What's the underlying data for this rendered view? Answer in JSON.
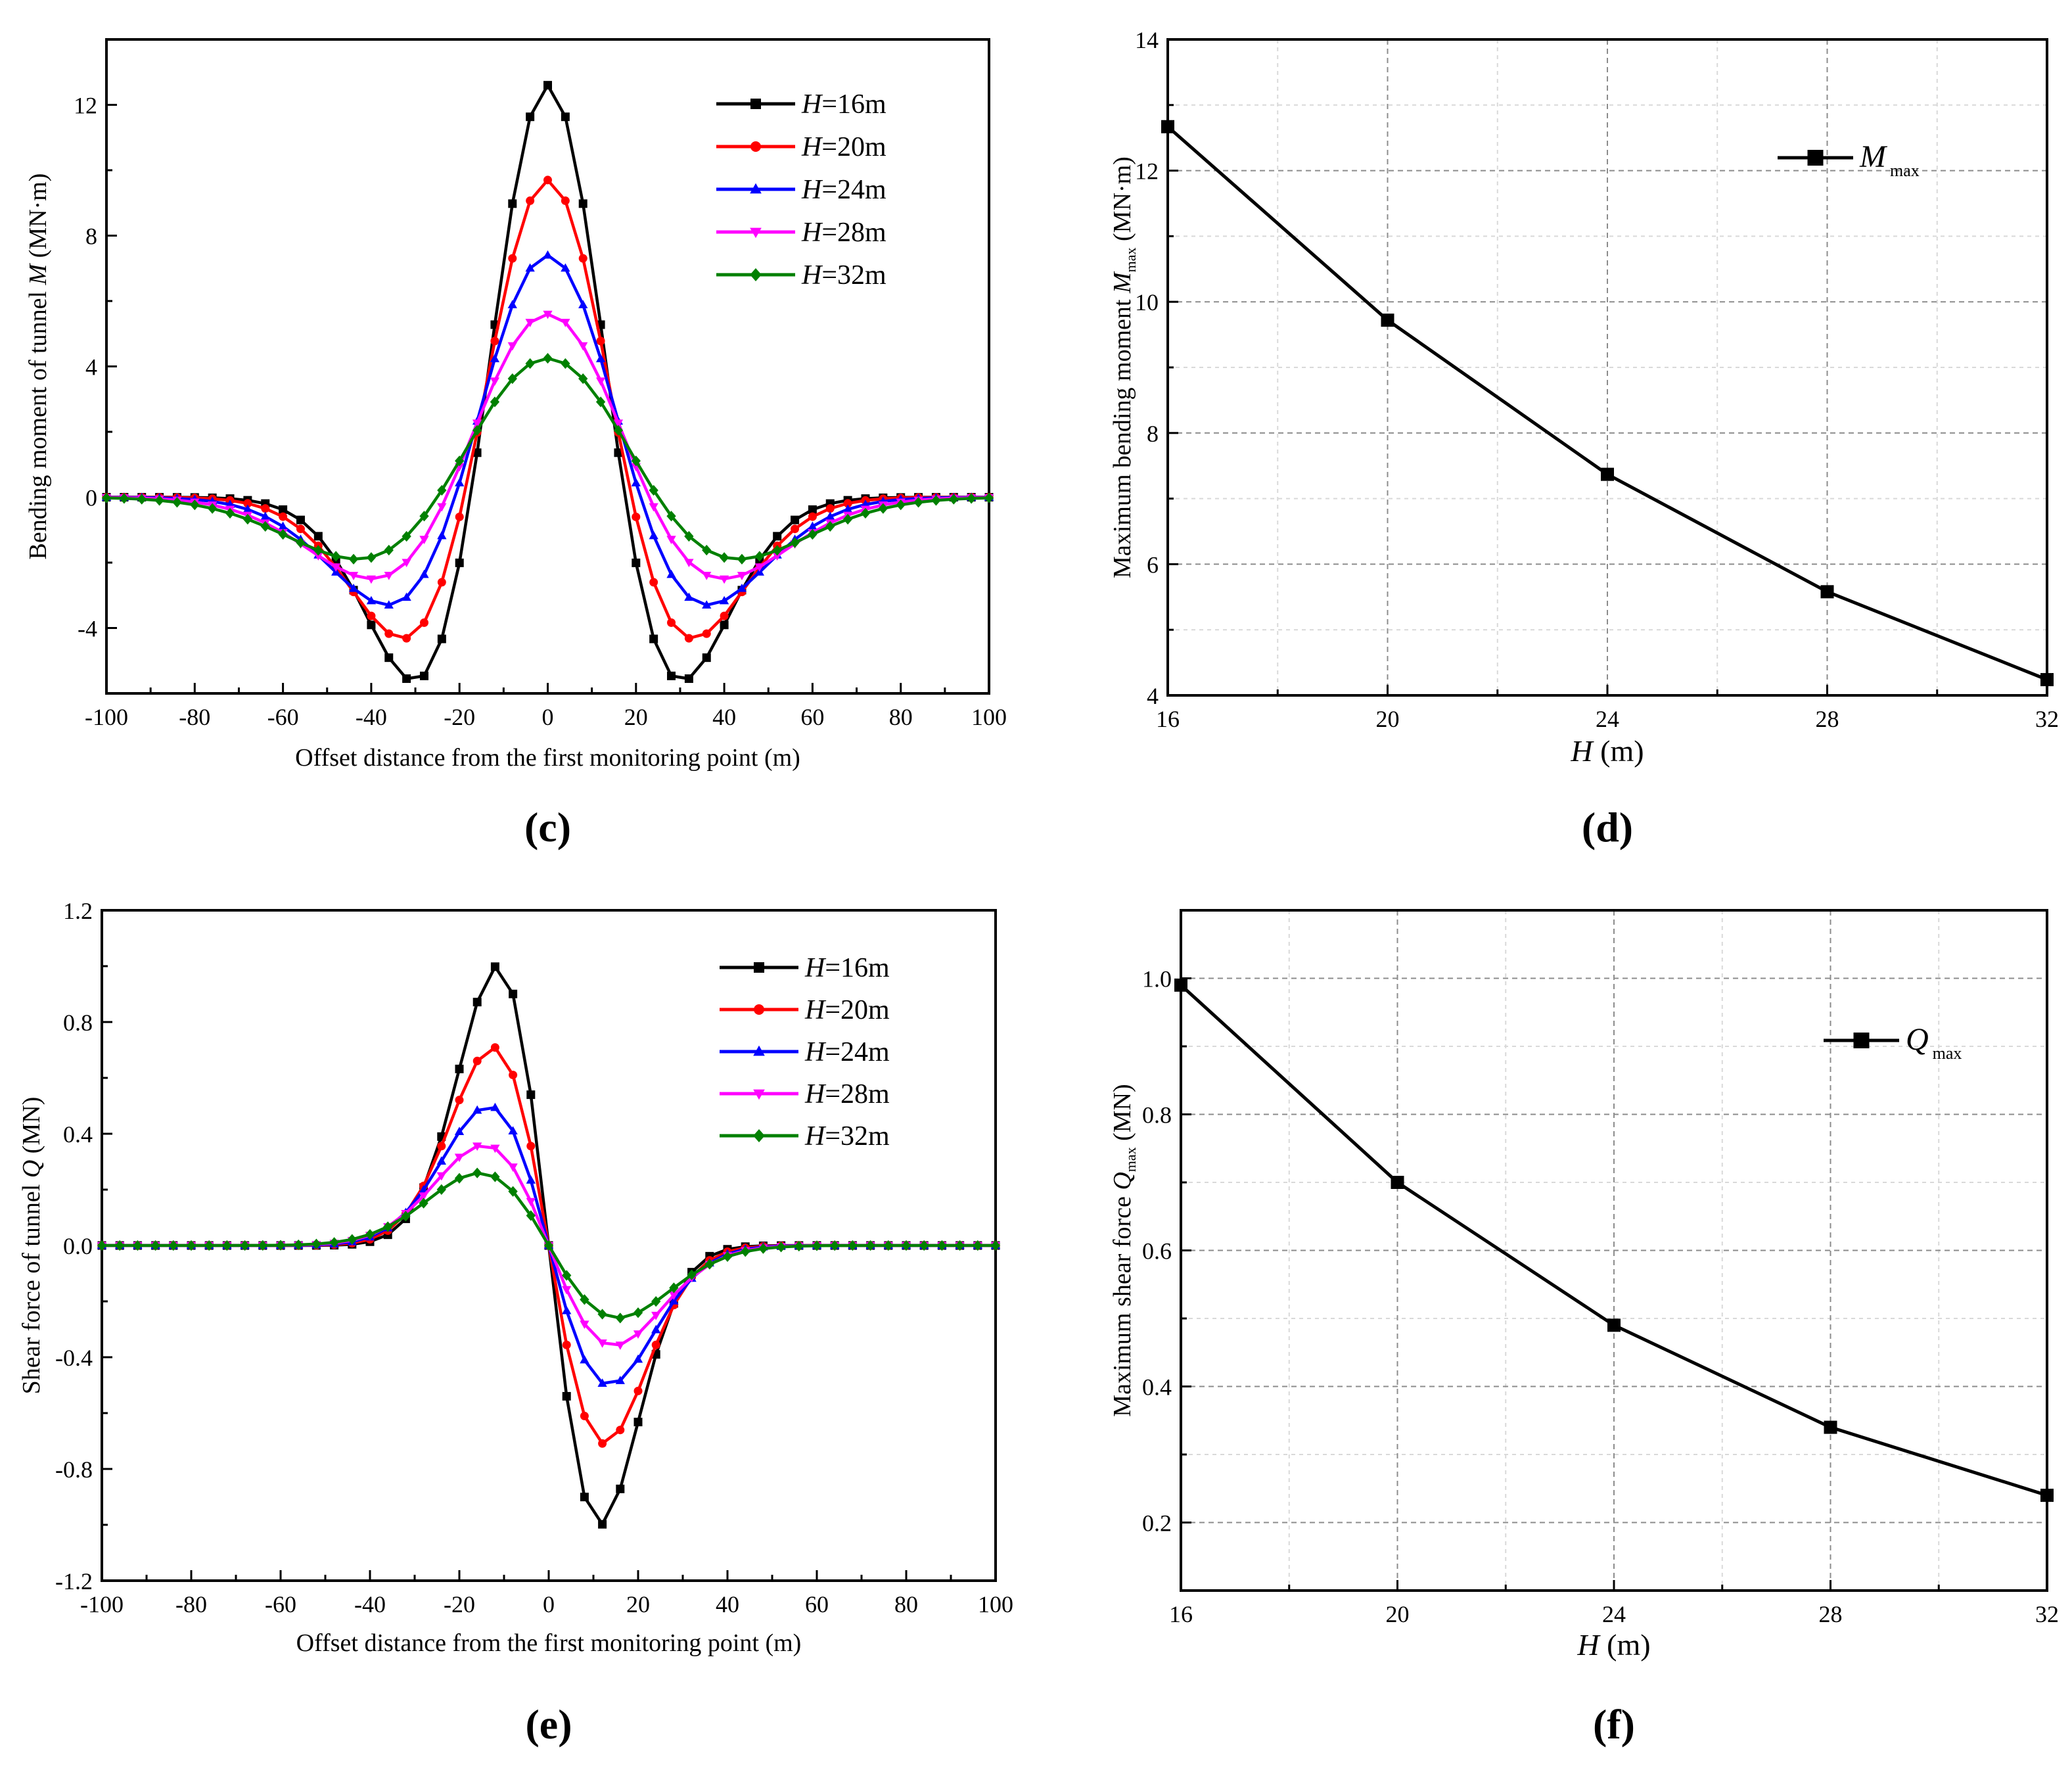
{
  "chart_data": [
    {
      "id": "c",
      "type": "line",
      "panel_label": "(c)",
      "title": "",
      "xlabel": "Offset distance from the first monitoring point (m)",
      "ylabel": {
        "pre": "Bending moment of tunnel ",
        "var": "M",
        "post": " (MN·m)"
      },
      "xlim": [
        -100,
        100
      ],
      "ylim": [
        -6,
        14
      ],
      "xticks": [
        -100,
        -80,
        -60,
        -40,
        -20,
        0,
        20,
        40,
        60,
        80,
        100
      ],
      "yticks": [
        -4,
        0,
        4,
        8,
        12
      ],
      "grid": false,
      "legend_position": "top-right",
      "x_step": 4,
      "model": "moment",
      "series": [
        {
          "name": "H=16m",
          "label_var": "H",
          "label_rest": "=16m",
          "color": "#000000",
          "marker": "square",
          "A": 12.6,
          "sigma": 17.5
        },
        {
          "name": "H=20m",
          "label_var": "H",
          "label_rest": "=20m",
          "color": "#ff0000",
          "marker": "circle",
          "A": 9.7,
          "sigma": 19
        },
        {
          "name": "H=24m",
          "label_var": "H",
          "label_rest": "=24m",
          "color": "#0000ff",
          "marker": "triangle-up",
          "A": 7.4,
          "sigma": 21
        },
        {
          "name": "H=28m",
          "label_var": "H",
          "label_rest": "=28m",
          "color": "#ff00ff",
          "marker": "triangle-down",
          "A": 5.6,
          "sigma": 23
        },
        {
          "name": "H=32m",
          "label_var": "H",
          "label_rest": "=32m",
          "color": "#008000",
          "marker": "diamond",
          "A": 4.25,
          "sigma": 25
        }
      ]
    },
    {
      "id": "d",
      "type": "line",
      "panel_label": "(d)",
      "title": "",
      "xlabel": {
        "var": "H",
        "post": " (m)"
      },
      "ylabel": {
        "pre": "Maximum bending moment ",
        "var": "M",
        "sub": "max",
        "post": " (MN·m)"
      },
      "xlim": [
        16,
        32
      ],
      "ylim": [
        4,
        14
      ],
      "xticks": [
        16,
        20,
        24,
        28,
        32
      ],
      "yticks": [
        4,
        6,
        8,
        10,
        12,
        14
      ],
      "grid": true,
      "legend_position": "top-right",
      "series": [
        {
          "name": "Mmax",
          "label_var": "M",
          "label_sub": "max",
          "color": "#000000",
          "marker": "square",
          "x": [
            16,
            20,
            24,
            28,
            32
          ],
          "y": [
            12.67,
            9.72,
            7.37,
            5.58,
            4.24
          ]
        }
      ]
    },
    {
      "id": "e",
      "type": "line",
      "panel_label": "(e)",
      "title": "",
      "xlabel": "Offset distance from the first monitoring point (m)",
      "ylabel": {
        "pre": "Shear force of tunnel ",
        "var": "Q",
        "post": " (MN)"
      },
      "xlim": [
        -100,
        100
      ],
      "ylim": [
        -1.2,
        1.2
      ],
      "xticks": [
        -100,
        -80,
        -60,
        -40,
        -20,
        0,
        20,
        40,
        60,
        80,
        100
      ],
      "yticks": [
        -1.2,
        -0.8,
        -0.4,
        0.0,
        0.4,
        0.8,
        1.2
      ],
      "grid": false,
      "legend_position": "top-right",
      "x_step": 4,
      "model": "shear",
      "series": [
        {
          "name": "H=16m",
          "label_var": "H",
          "label_rest": "=16m",
          "color": "#000000",
          "marker": "square",
          "A": 1.0,
          "sigma": 11.5
        },
        {
          "name": "H=20m",
          "label_var": "H",
          "label_rest": "=20m",
          "color": "#ff0000",
          "marker": "circle",
          "A": 0.71,
          "sigma": 12.5
        },
        {
          "name": "H=24m",
          "label_var": "H",
          "label_rest": "=24m",
          "color": "#0000ff",
          "marker": "triangle-up",
          "A": 0.5,
          "sigma": 13.5
        },
        {
          "name": "H=28m",
          "label_var": "H",
          "label_rest": "=28m",
          "color": "#ff00ff",
          "marker": "triangle-down",
          "A": 0.36,
          "sigma": 14.5
        },
        {
          "name": "H=32m",
          "label_var": "H",
          "label_rest": "=32m",
          "color": "#008000",
          "marker": "diamond",
          "A": 0.26,
          "sigma": 15.5
        }
      ]
    },
    {
      "id": "f",
      "type": "line",
      "panel_label": "(f)",
      "title": "",
      "xlabel": {
        "var": "H",
        "post": " (m)"
      },
      "ylabel": {
        "pre": "Maximum shear force ",
        "var": "Q",
        "sub": "max",
        "post": " (MN)"
      },
      "xlim": [
        16,
        32
      ],
      "ylim": [
        0.1,
        1.1
      ],
      "xticks": [
        16,
        20,
        24,
        28,
        32
      ],
      "yticks": [
        0.2,
        0.4,
        0.6,
        0.8,
        1.0
      ],
      "grid": true,
      "legend_position": "top-right",
      "series": [
        {
          "name": "Qmax",
          "label_var": "Q",
          "label_sub": "max",
          "color": "#000000",
          "marker": "square",
          "x": [
            16,
            20,
            24,
            28,
            32
          ],
          "y": [
            0.99,
            0.7,
            0.49,
            0.34,
            0.24
          ]
        }
      ]
    }
  ]
}
